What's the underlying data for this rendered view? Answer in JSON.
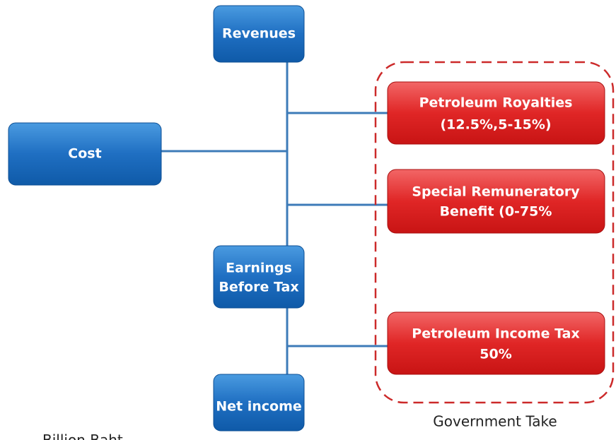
{
  "nodes": [
    {
      "lines": [
        "Revenues"
      ]
    },
    {
      "lines": [
        "Cost"
      ]
    },
    {
      "lines": [
        "Earnings",
        "Before Tax"
      ]
    },
    {
      "lines": [
        "Net income"
      ]
    },
    {
      "lines": [
        "Petroleum Royalties",
        "(12.5%,5-15%)"
      ]
    },
    {
      "lines": [
        "Special Remuneratory",
        "Benefit (0-75%"
      ]
    },
    {
      "lines": [
        "Petroleum Income Tax",
        "50%"
      ]
    }
  ],
  "group_label": "Government Take",
  "footnote": "Billion Baht"
}
